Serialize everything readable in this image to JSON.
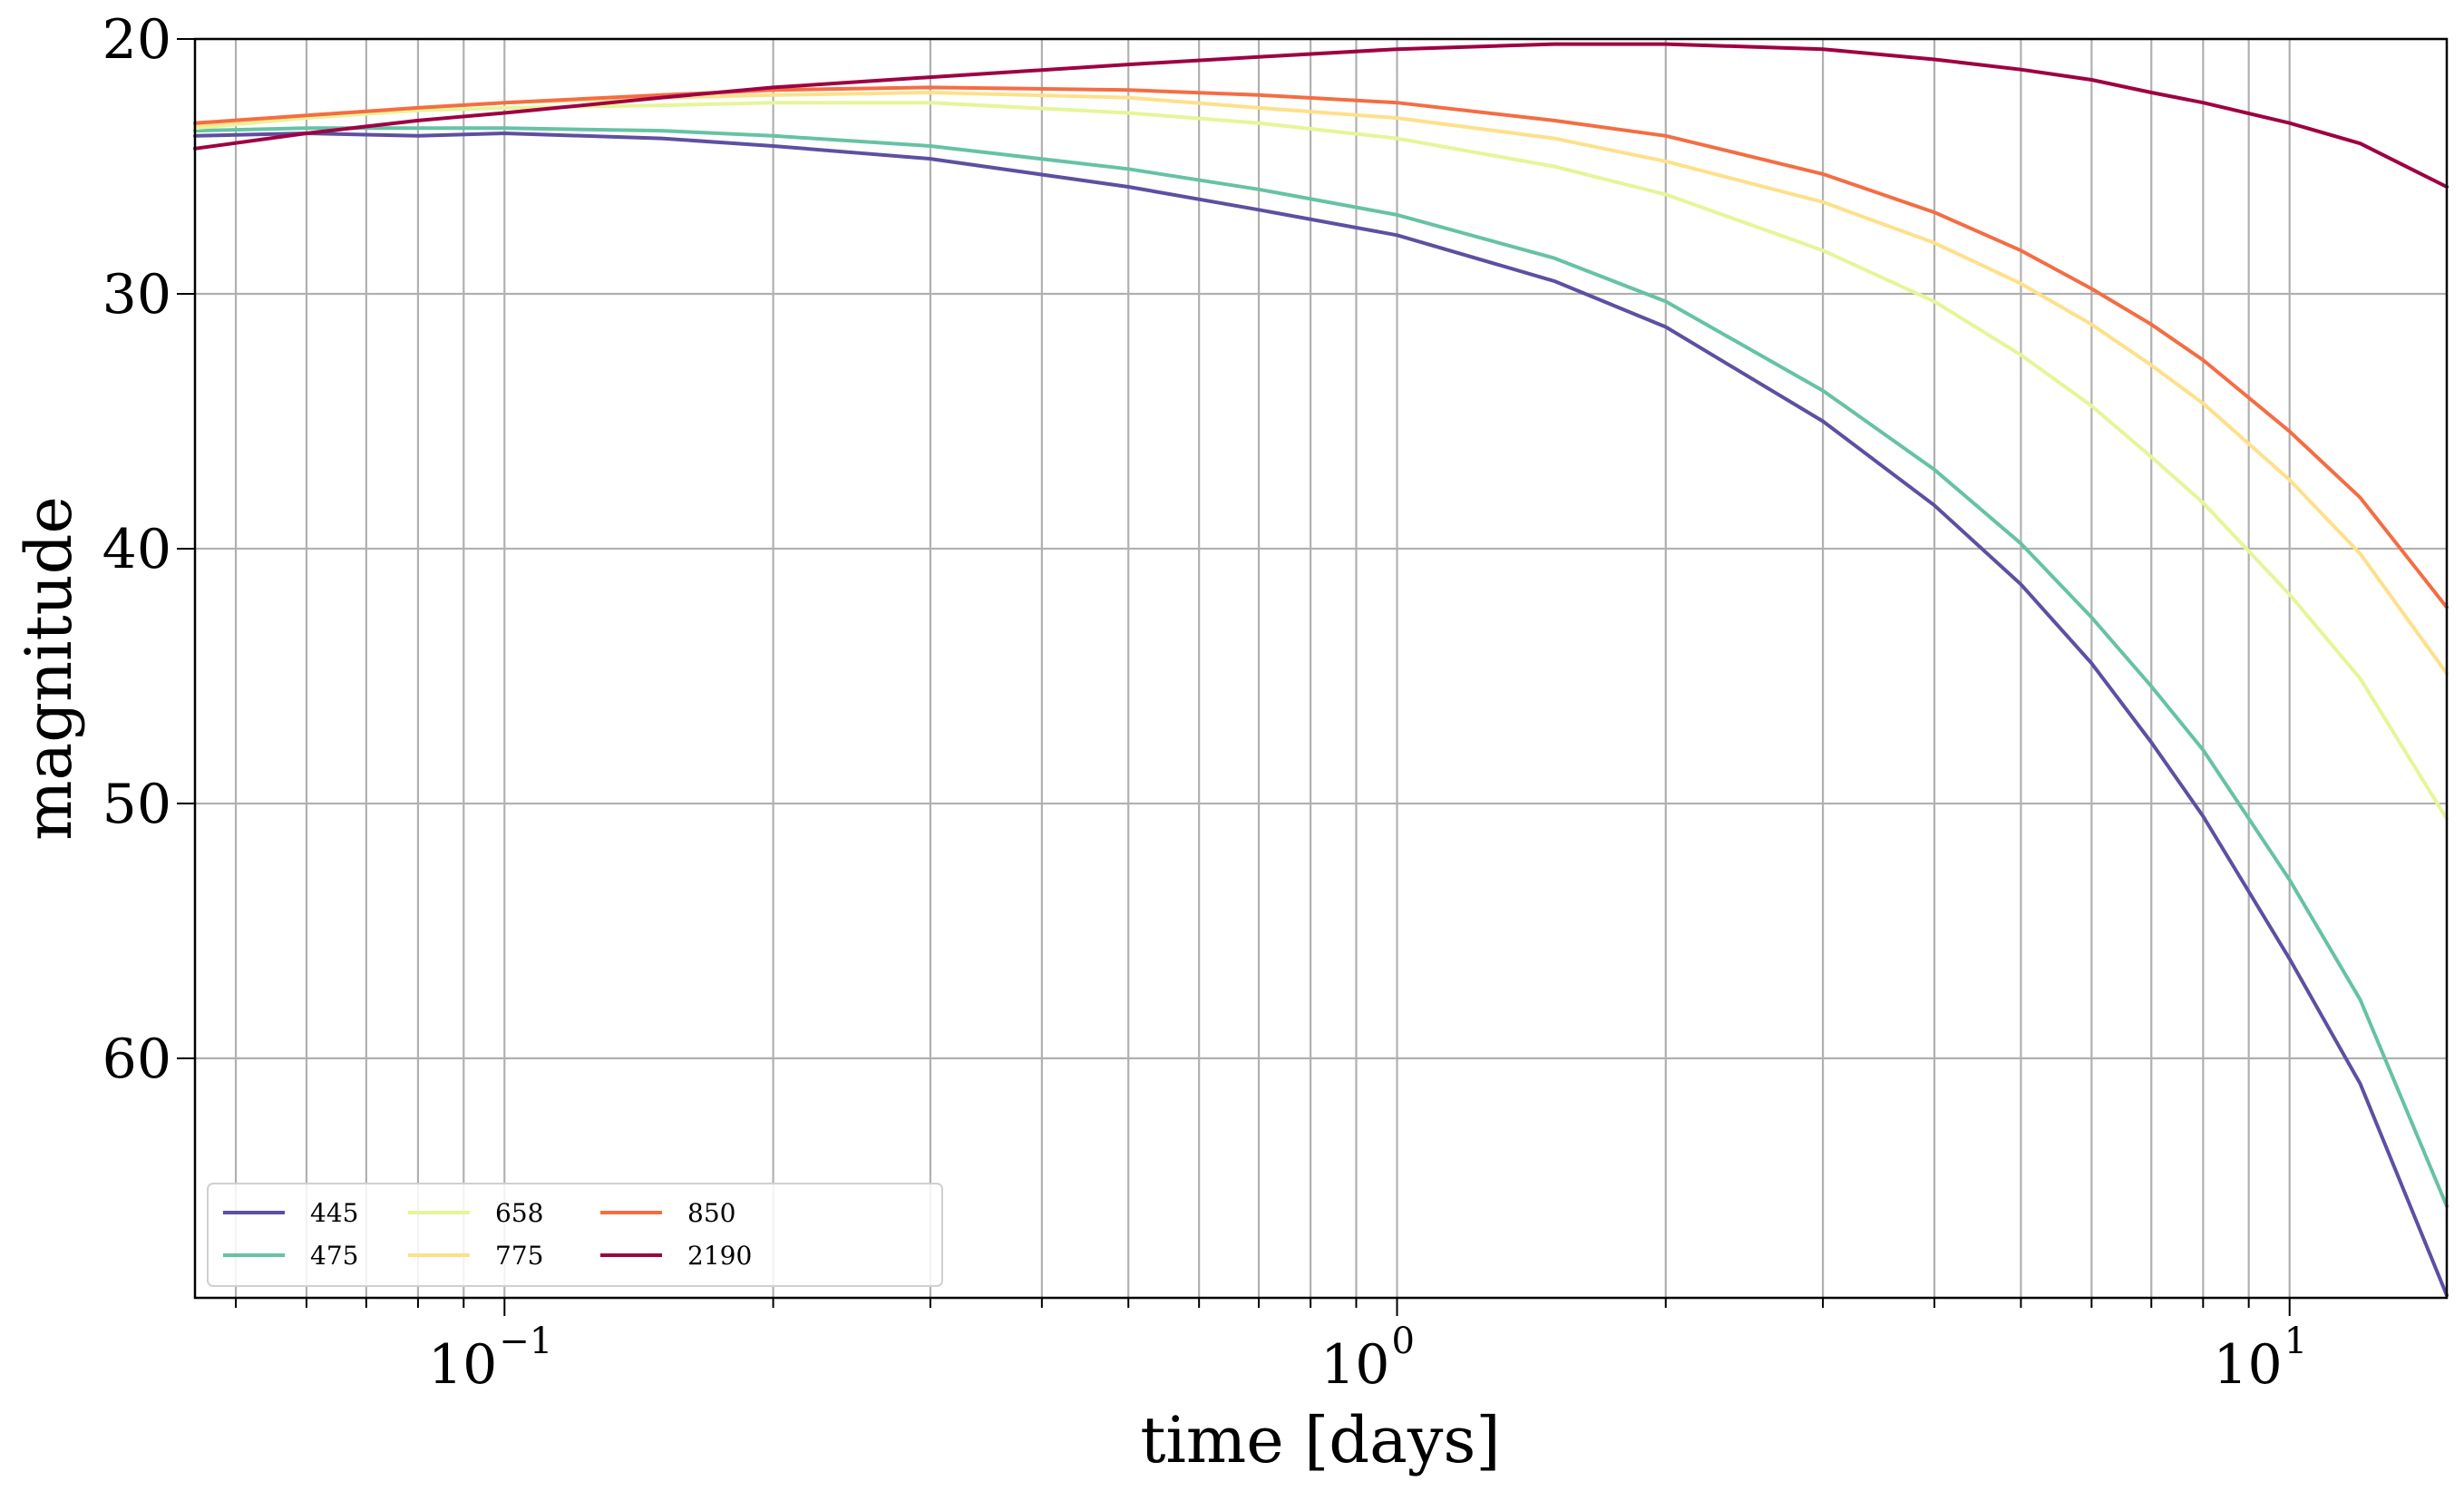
{
  "chart_data": {
    "type": "line",
    "title": "",
    "xlabel": "time [days]",
    "ylabel": "magnitude",
    "x_scale": "log",
    "xlim": [
      0.045,
      15
    ],
    "ylim": [
      69.4,
      20
    ],
    "y_inverted": true,
    "grid": true,
    "legend_position": "lower-left",
    "legend_columns": 4,
    "x_tick_labels": [
      {
        "base": "10",
        "exp": "−1",
        "value": 0.1
      },
      {
        "base": "10",
        "exp": "0",
        "value": 1
      },
      {
        "base": "10",
        "exp": "1",
        "value": 10
      }
    ],
    "y_ticks": [
      {
        "value": 20,
        "label": "20"
      },
      {
        "value": 30,
        "label": "30"
      },
      {
        "value": 40,
        "label": "40"
      },
      {
        "value": 50,
        "label": "50"
      },
      {
        "value": 60,
        "label": "60"
      }
    ],
    "series": [
      {
        "name": "445",
        "color": "#5e4fa2",
        "x": [
          0.045,
          0.06,
          0.08,
          0.1,
          0.15,
          0.2,
          0.3,
          0.5,
          0.7,
          1,
          1.5,
          2,
          3,
          4,
          5,
          6,
          7,
          8,
          10,
          12,
          15
        ],
        "y": [
          23.8,
          23.7,
          23.8,
          23.7,
          23.9,
          24.2,
          24.7,
          25.8,
          26.7,
          27.7,
          29.5,
          31.3,
          35.0,
          38.3,
          41.4,
          44.5,
          47.6,
          50.5,
          56.1,
          61.0,
          69.3
        ]
      },
      {
        "name": "475",
        "color": "#66c2a5",
        "x": [
          0.045,
          0.06,
          0.08,
          0.1,
          0.15,
          0.2,
          0.3,
          0.5,
          0.7,
          1,
          1.5,
          2,
          3,
          4,
          5,
          6,
          7,
          8,
          10,
          12,
          15
        ],
        "y": [
          23.6,
          23.5,
          23.5,
          23.5,
          23.6,
          23.8,
          24.2,
          25.1,
          25.9,
          26.9,
          28.6,
          30.3,
          33.8,
          36.9,
          39.8,
          42.7,
          45.4,
          47.9,
          53.0,
          57.7,
          65.8
        ]
      },
      {
        "name": "658",
        "color": "#e6f598",
        "x": [
          0.045,
          0.06,
          0.08,
          0.1,
          0.15,
          0.2,
          0.3,
          0.5,
          0.7,
          1,
          1.5,
          2,
          3,
          4,
          5,
          6,
          7,
          8,
          10,
          12,
          15
        ],
        "y": [
          23.5,
          23.1,
          22.8,
          22.7,
          22.6,
          22.5,
          22.5,
          22.9,
          23.3,
          23.9,
          25.0,
          26.1,
          28.3,
          30.3,
          32.4,
          34.4,
          36.4,
          38.2,
          41.8,
          45.1,
          50.6
        ]
      },
      {
        "name": "775",
        "color": "#fee08b",
        "x": [
          0.045,
          0.06,
          0.08,
          0.1,
          0.15,
          0.2,
          0.3,
          0.5,
          0.7,
          1,
          1.5,
          2,
          3,
          4,
          5,
          6,
          7,
          8,
          10,
          12,
          15
        ],
        "y": [
          23.4,
          23.0,
          22.7,
          22.5,
          22.3,
          22.2,
          22.1,
          22.3,
          22.7,
          23.1,
          23.9,
          24.8,
          26.4,
          28.0,
          29.6,
          31.2,
          32.8,
          34.3,
          37.3,
          40.2,
          44.9
        ]
      },
      {
        "name": "850",
        "color": "#f46d43",
        "x": [
          0.045,
          0.06,
          0.08,
          0.1,
          0.15,
          0.2,
          0.3,
          0.5,
          0.7,
          1,
          1.5,
          2,
          3,
          4,
          5,
          6,
          7,
          8,
          10,
          12,
          15
        ],
        "y": [
          23.3,
          23.0,
          22.7,
          22.5,
          22.2,
          22.0,
          21.9,
          22.0,
          22.2,
          22.5,
          23.2,
          23.8,
          25.3,
          26.8,
          28.3,
          29.8,
          31.2,
          32.6,
          35.4,
          38.0,
          42.3
        ]
      },
      {
        "name": "2190",
        "color": "#9e0142",
        "x": [
          0.045,
          0.06,
          0.08,
          0.1,
          0.15,
          0.2,
          0.3,
          0.5,
          0.7,
          1,
          1.5,
          2,
          3,
          4,
          5,
          6,
          7,
          8,
          10,
          12,
          15
        ],
        "y": [
          24.3,
          23.7,
          23.2,
          22.9,
          22.3,
          21.9,
          21.5,
          21.0,
          20.7,
          20.4,
          20.2,
          20.2,
          20.4,
          20.8,
          21.2,
          21.6,
          22.1,
          22.5,
          23.3,
          24.1,
          25.8
        ]
      }
    ]
  }
}
